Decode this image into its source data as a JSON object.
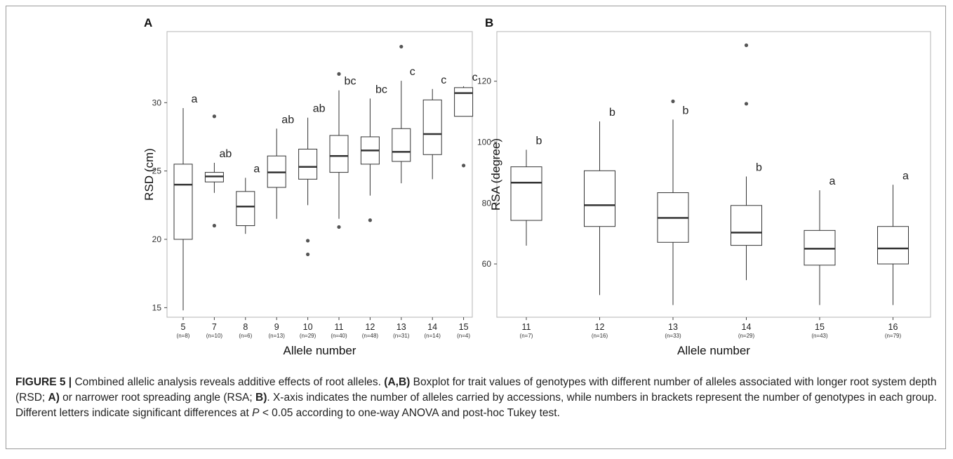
{
  "chart_data": [
    {
      "type": "boxplot",
      "panel_label": "A",
      "xlabel": "Allele number",
      "ylabel": "RSD (cm)",
      "ylim": [
        14.3,
        35.2
      ],
      "yticks": [
        15,
        20,
        25,
        30
      ],
      "grid": false,
      "groups": [
        {
          "x": "5",
          "n": "(n=8)",
          "min": 14.8,
          "q1": 20.0,
          "median": 24.0,
          "q3": 25.5,
          "max": 29.6,
          "outliers": [],
          "letter": "a"
        },
        {
          "x": "7",
          "n": "(n=10)",
          "min": 23.4,
          "q1": 24.2,
          "median": 24.6,
          "q3": 24.9,
          "max": 25.6,
          "outliers": [
            29.0,
            21.0
          ],
          "letter": "ab"
        },
        {
          "x": "8",
          "n": "(n=6)",
          "min": 20.4,
          "q1": 21.0,
          "median": 22.4,
          "q3": 23.5,
          "max": 24.5,
          "outliers": [],
          "letter": "a"
        },
        {
          "x": "9",
          "n": "(n=13)",
          "min": 21.5,
          "q1": 23.8,
          "median": 24.9,
          "q3": 26.1,
          "max": 28.1,
          "outliers": [],
          "letter": "ab"
        },
        {
          "x": "10",
          "n": "(n=29)",
          "min": 22.5,
          "q1": 24.4,
          "median": 25.3,
          "q3": 26.6,
          "max": 28.9,
          "outliers": [
            19.9,
            18.9
          ],
          "letter": "ab"
        },
        {
          "x": "11",
          "n": "(n=40)",
          "min": 21.5,
          "q1": 24.9,
          "median": 26.1,
          "q3": 27.6,
          "max": 30.9,
          "outliers": [
            32.1,
            20.9
          ],
          "letter": "bc"
        },
        {
          "x": "12",
          "n": "(n=48)",
          "min": 23.2,
          "q1": 25.5,
          "median": 26.5,
          "q3": 27.5,
          "max": 30.3,
          "outliers": [
            21.4
          ],
          "letter": "bc"
        },
        {
          "x": "13",
          "n": "(n=31)",
          "min": 24.1,
          "q1": 25.7,
          "median": 26.4,
          "q3": 28.1,
          "max": 31.6,
          "outliers": [
            34.1
          ],
          "letter": "c"
        },
        {
          "x": "14",
          "n": "(n=14)",
          "min": 24.4,
          "q1": 26.2,
          "median": 27.7,
          "q3": 30.2,
          "max": 31.0,
          "outliers": [],
          "letter": "c"
        },
        {
          "x": "15",
          "n": "(n=4)",
          "min": 29.0,
          "q1": 29.0,
          "median": 30.7,
          "q3": 31.1,
          "max": 31.2,
          "outliers": [
            25.4
          ],
          "letter": "c"
        }
      ]
    },
    {
      "type": "boxplot",
      "panel_label": "B",
      "xlabel": "Allele number",
      "ylabel": "RSA (degree)",
      "ylim": [
        42.5,
        136.3
      ],
      "yticks": [
        60,
        80,
        100,
        120
      ],
      "grid": false,
      "groups": [
        {
          "x": "11",
          "n": "(n=7)",
          "min": 66.0,
          "q1": 74.3,
          "median": 86.7,
          "q3": 91.9,
          "max": 97.5,
          "outliers": [],
          "letter": "b"
        },
        {
          "x": "12",
          "n": "(n=16)",
          "min": 49.8,
          "q1": 72.3,
          "median": 79.3,
          "q3": 90.6,
          "max": 106.8,
          "outliers": [],
          "letter": "b"
        },
        {
          "x": "13",
          "n": "(n=33)",
          "min": 46.5,
          "q1": 67.1,
          "median": 75.1,
          "q3": 83.4,
          "max": 107.4,
          "outliers": [
            113.4
          ],
          "letter": "b"
        },
        {
          "x": "14",
          "n": "(n=29)",
          "min": 54.7,
          "q1": 66.1,
          "median": 70.3,
          "q3": 79.2,
          "max": 88.7,
          "outliers": [
            131.8,
            112.6
          ],
          "letter": "b"
        },
        {
          "x": "15",
          "n": "(n=43)",
          "min": 46.5,
          "q1": 59.6,
          "median": 65.0,
          "q3": 71.0,
          "max": 84.2,
          "outliers": [],
          "letter": "a"
        },
        {
          "x": "16",
          "n": "(n=79)",
          "min": 46.5,
          "q1": 60.0,
          "median": 65.1,
          "q3": 72.3,
          "max": 86.0,
          "outliers": [],
          "letter": "a"
        }
      ]
    }
  ],
  "caption": {
    "label": "FIGURE 5 |",
    "t1": " Combined allelic analysis reveals additive effects of root alleles. ",
    "b1": "(A,B)",
    "t2": " Boxplot for trait values of genotypes with different number of alleles associated with longer root system depth (RSD; ",
    "b2": "A)",
    "t3": " or narrower root spreading angle (RSA; ",
    "b3": "B)",
    "t4": ". X-axis indicates the number of alleles carried by accessions, while numbers in brackets represent the number of genotypes in each group. Different letters indicate significant differences at ",
    "p": "P",
    "t5": " < 0.05 according to one-way ANOVA and post-hoc Tukey test."
  }
}
